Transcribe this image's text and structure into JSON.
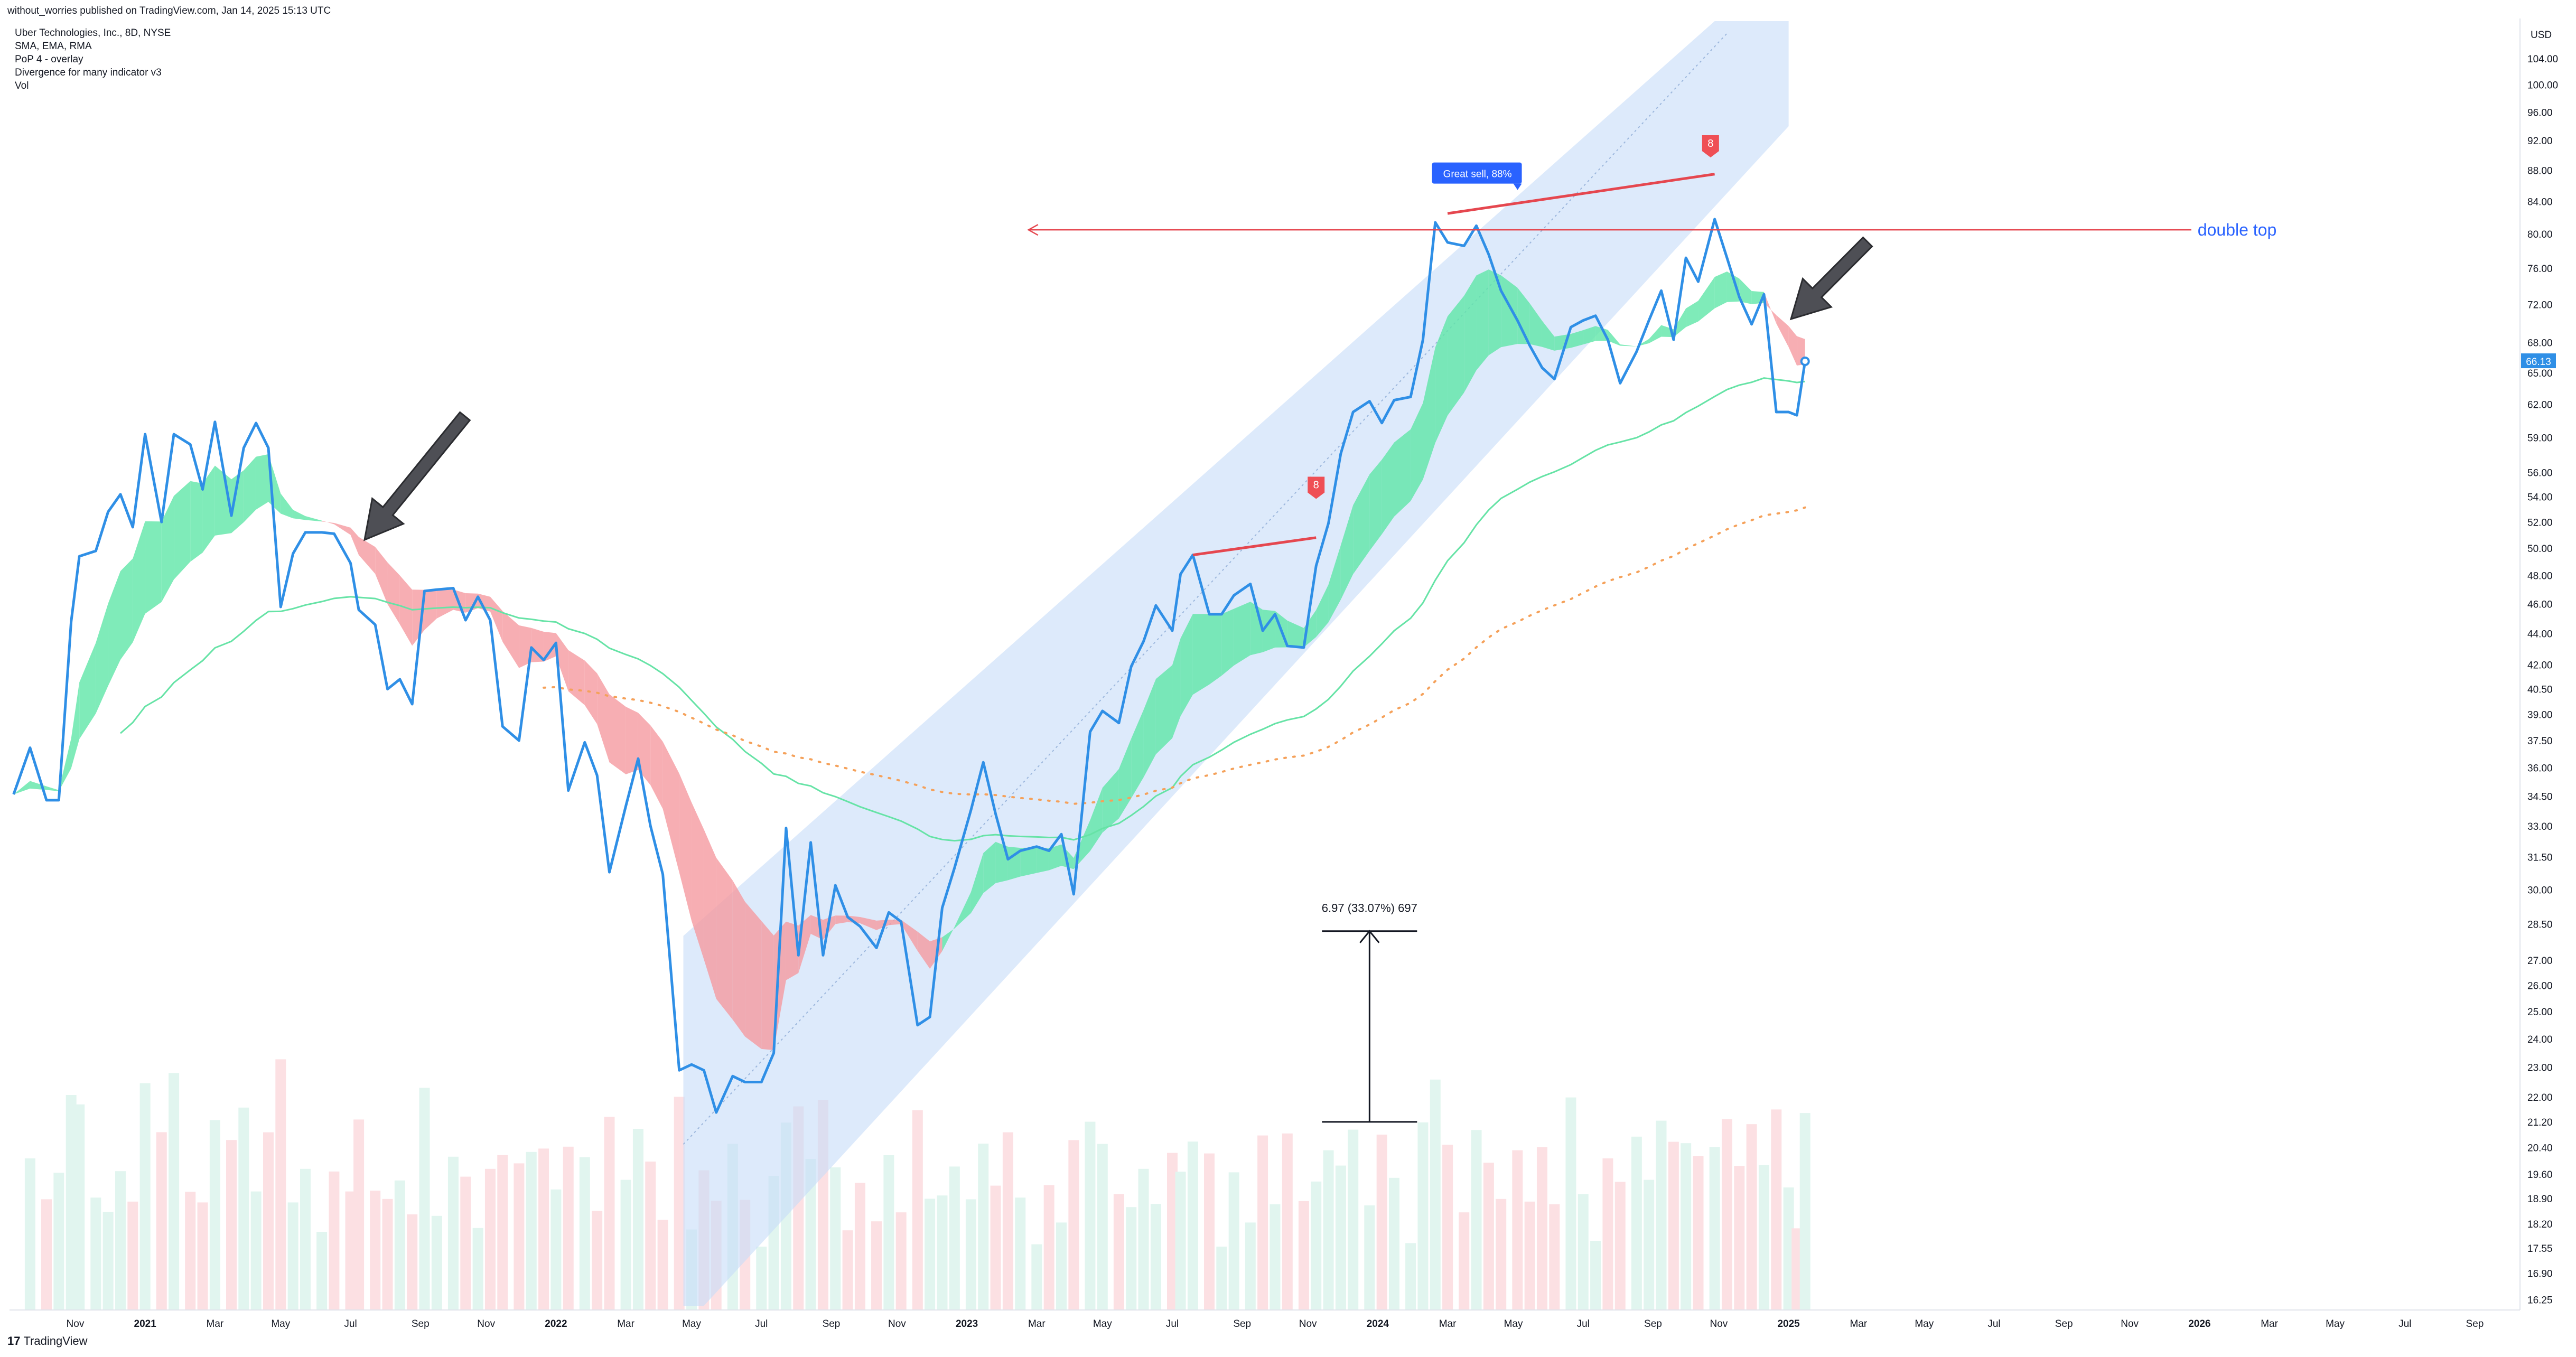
{
  "header": {
    "published": "without_worries published on TradingView.com, Jan 14, 2025 15:13 UTC"
  },
  "legend_lines": [
    "Uber Technologies, Inc., 8D, NYSE",
    "SMA, EMA, RMA",
    "PoP 4 - overlay",
    "Divergence for many indicator v3",
    "Vol"
  ],
  "footer": {
    "logo_mark": "17",
    "brand": "TradingView"
  },
  "colors": {
    "price": "#2f8fe6",
    "green_band": "#5fe6a8",
    "red_band": "#f59aa0",
    "sma": "#66e3a6",
    "dotted": "#f5a15a",
    "channel": "#c6dcf8",
    "red_line": "#e5474f",
    "label_blue": "#2962ff",
    "arrow": "#4e4f55",
    "vol_red": "#fce0e3",
    "vol_green": "#e1f5ef"
  },
  "chart_data": {
    "type": "line",
    "title": "Uber Technologies, Inc., 8D, NYSE",
    "currency": "USD",
    "scale": "log",
    "ylim": [
      16,
      110
    ],
    "y_ticks": [
      104,
      100,
      96,
      92,
      88,
      84,
      80,
      76,
      72,
      68,
      65,
      62,
      59,
      56,
      54,
      52,
      50,
      48,
      46,
      44,
      42,
      40.5,
      39,
      37.5,
      36,
      34.5,
      33,
      31.5,
      30,
      28.5,
      27,
      26,
      25,
      24,
      23,
      22,
      21.2,
      20.4,
      19.6,
      18.9,
      18.2,
      17.55,
      16.9,
      16.25
    ],
    "y_tick_labels": [
      "104.00",
      "100.00",
      "96.00",
      "92.00",
      "88.00",
      "84.00",
      "80.00",
      "76.00",
      "72.00",
      "68.00",
      "65.00",
      "62.00",
      "59.00",
      "56.00",
      "54.00",
      "52.00",
      "50.00",
      "48.00",
      "46.00",
      "44.00",
      "42.00",
      "40.50",
      "39.00",
      "37.50",
      "36.00",
      "34.50",
      "33.00",
      "31.50",
      "30.00",
      "28.50",
      "27.00",
      "26.00",
      "25.00",
      "24.00",
      "23.00",
      "22.00",
      "21.20",
      "20.40",
      "19.60",
      "18.90",
      "18.20",
      "17.55",
      "16.90",
      "16.25"
    ],
    "x_ticks": [
      {
        "label": "Nov",
        "t": 2020.83
      },
      {
        "label": "2021",
        "t": 2021.0
      },
      {
        "label": "Mar",
        "t": 2021.17
      },
      {
        "label": "May",
        "t": 2021.33
      },
      {
        "label": "Jul",
        "t": 2021.5
      },
      {
        "label": "Sep",
        "t": 2021.67
      },
      {
        "label": "Nov",
        "t": 2021.83
      },
      {
        "label": "2022",
        "t": 2022.0
      },
      {
        "label": "Mar",
        "t": 2022.17
      },
      {
        "label": "May",
        "t": 2022.33
      },
      {
        "label": "Jul",
        "t": 2022.5
      },
      {
        "label": "Sep",
        "t": 2022.67
      },
      {
        "label": "Nov",
        "t": 2022.83
      },
      {
        "label": "2023",
        "t": 2023.0
      },
      {
        "label": "Mar",
        "t": 2023.17
      },
      {
        "label": "May",
        "t": 2023.33
      },
      {
        "label": "Jul",
        "t": 2023.5
      },
      {
        "label": "Sep",
        "t": 2023.67
      },
      {
        "label": "Nov",
        "t": 2023.83
      },
      {
        "label": "2024",
        "t": 2024.0
      },
      {
        "label": "Mar",
        "t": 2024.17
      },
      {
        "label": "May",
        "t": 2024.33
      },
      {
        "label": "Jul",
        "t": 2024.5
      },
      {
        "label": "Sep",
        "t": 2024.67
      },
      {
        "label": "Nov",
        "t": 2024.83
      },
      {
        "label": "2025",
        "t": 2025.0
      },
      {
        "label": "Mar",
        "t": 2025.17
      },
      {
        "label": "May",
        "t": 2025.33
      },
      {
        "label": "Jul",
        "t": 2025.5
      },
      {
        "label": "Sep",
        "t": 2025.67
      },
      {
        "label": "Nov",
        "t": 2025.83
      },
      {
        "label": "2026",
        "t": 2026.0
      },
      {
        "label": "Mar",
        "t": 2026.17
      },
      {
        "label": "May",
        "t": 2026.33
      },
      {
        "label": "Jul",
        "t": 2026.5
      },
      {
        "label": "Sep",
        "t": 2026.67
      }
    ],
    "x_range": [
      2020.67,
      2026.78
    ],
    "price": [
      [
        2020.68,
        34.6
      ],
      [
        2020.72,
        37.1
      ],
      [
        2020.76,
        34.3
      ],
      [
        2020.79,
        34.3
      ],
      [
        2020.82,
        44.8
      ],
      [
        2020.84,
        49.4
      ],
      [
        2020.88,
        49.8
      ],
      [
        2020.91,
        52.8
      ],
      [
        2020.94,
        54.2
      ],
      [
        2020.97,
        51.6
      ],
      [
        2021.0,
        59.3
      ],
      [
        2021.04,
        52.0
      ],
      [
        2021.07,
        59.3
      ],
      [
        2021.11,
        58.4
      ],
      [
        2021.14,
        54.6
      ],
      [
        2021.17,
        60.4
      ],
      [
        2021.21,
        52.5
      ],
      [
        2021.24,
        58.1
      ],
      [
        2021.27,
        60.3
      ],
      [
        2021.3,
        58.1
      ],
      [
        2021.33,
        45.8
      ],
      [
        2021.36,
        49.6
      ],
      [
        2021.39,
        51.2
      ],
      [
        2021.43,
        51.2
      ],
      [
        2021.46,
        51.1
      ],
      [
        2021.5,
        48.9
      ],
      [
        2021.52,
        45.6
      ],
      [
        2021.56,
        44.6
      ],
      [
        2021.59,
        40.5
      ],
      [
        2021.62,
        41.1
      ],
      [
        2021.65,
        39.6
      ],
      [
        2021.68,
        46.9
      ],
      [
        2021.71,
        47.0
      ],
      [
        2021.75,
        47.1
      ],
      [
        2021.78,
        44.9
      ],
      [
        2021.81,
        46.5
      ],
      [
        2021.84,
        44.9
      ],
      [
        2021.87,
        38.3
      ],
      [
        2021.91,
        37.5
      ],
      [
        2021.94,
        43.1
      ],
      [
        2021.97,
        42.3
      ],
      [
        2022.0,
        43.4
      ],
      [
        2022.03,
        34.8
      ],
      [
        2022.07,
        37.4
      ],
      [
        2022.1,
        35.6
      ],
      [
        2022.13,
        30.8
      ],
      [
        2022.17,
        34.0
      ],
      [
        2022.2,
        36.5
      ],
      [
        2022.23,
        33.0
      ],
      [
        2022.26,
        30.7
      ],
      [
        2022.3,
        22.9
      ],
      [
        2022.33,
        23.1
      ],
      [
        2022.36,
        22.9
      ],
      [
        2022.39,
        21.5
      ],
      [
        2022.43,
        22.7
      ],
      [
        2022.46,
        22.5
      ],
      [
        2022.5,
        22.5
      ],
      [
        2022.53,
        23.5
      ],
      [
        2022.56,
        32.9
      ],
      [
        2022.59,
        27.2
      ],
      [
        2022.62,
        32.2
      ],
      [
        2022.65,
        27.2
      ],
      [
        2022.68,
        30.2
      ],
      [
        2022.71,
        28.8
      ],
      [
        2022.74,
        28.4
      ],
      [
        2022.78,
        27.5
      ],
      [
        2022.81,
        29.0
      ],
      [
        2022.84,
        28.6
      ],
      [
        2022.88,
        24.5
      ],
      [
        2022.91,
        24.8
      ],
      [
        2022.94,
        29.2
      ],
      [
        2022.97,
        31.0
      ],
      [
        2023.01,
        33.8
      ],
      [
        2023.04,
        36.3
      ],
      [
        2023.07,
        33.6
      ],
      [
        2023.1,
        31.4
      ],
      [
        2023.13,
        31.8
      ],
      [
        2023.17,
        32.0
      ],
      [
        2023.2,
        31.8
      ],
      [
        2023.23,
        32.6
      ],
      [
        2023.26,
        29.8
      ],
      [
        2023.3,
        38.0
      ],
      [
        2023.33,
        39.2
      ],
      [
        2023.37,
        38.5
      ],
      [
        2023.4,
        41.9
      ],
      [
        2023.43,
        43.5
      ],
      [
        2023.46,
        45.9
      ],
      [
        2023.5,
        44.2
      ],
      [
        2023.52,
        48.1
      ],
      [
        2023.55,
        49.5
      ],
      [
        2023.59,
        45.3
      ],
      [
        2023.62,
        45.3
      ],
      [
        2023.65,
        46.6
      ],
      [
        2023.69,
        47.4
      ],
      [
        2023.72,
        44.2
      ],
      [
        2023.75,
        45.3
      ],
      [
        2023.78,
        43.2
      ],
      [
        2023.82,
        43.1
      ],
      [
        2023.85,
        48.7
      ],
      [
        2023.88,
        51.9
      ],
      [
        2023.91,
        57.6
      ],
      [
        2023.94,
        61.3
      ],
      [
        2023.98,
        62.3
      ],
      [
        2024.01,
        60.3
      ],
      [
        2024.04,
        62.4
      ],
      [
        2024.08,
        62.7
      ],
      [
        2024.11,
        68.3
      ],
      [
        2024.14,
        81.4
      ],
      [
        2024.17,
        79.0
      ],
      [
        2024.21,
        78.6
      ],
      [
        2024.24,
        81.0
      ],
      [
        2024.27,
        77.6
      ],
      [
        2024.3,
        73.5
      ],
      [
        2024.34,
        70.3
      ],
      [
        2024.37,
        67.7
      ],
      [
        2024.4,
        65.5
      ],
      [
        2024.43,
        64.4
      ],
      [
        2024.47,
        69.6
      ],
      [
        2024.5,
        70.3
      ],
      [
        2024.53,
        70.8
      ],
      [
        2024.56,
        68.3
      ],
      [
        2024.59,
        64.0
      ],
      [
        2024.63,
        67.1
      ],
      [
        2024.66,
        70.3
      ],
      [
        2024.69,
        73.5
      ],
      [
        2024.72,
        68.3
      ],
      [
        2024.75,
        77.2
      ],
      [
        2024.78,
        74.5
      ],
      [
        2024.82,
        81.8
      ],
      [
        2024.85,
        77.2
      ],
      [
        2024.88,
        72.8
      ],
      [
        2024.91,
        69.9
      ],
      [
        2024.94,
        73.1
      ],
      [
        2024.97,
        61.3
      ],
      [
        2025.0,
        61.3
      ],
      [
        2025.02,
        61.0
      ],
      [
        2025.04,
        66.13
      ]
    ],
    "last_price_label": "66.13",
    "annotations": {
      "great_sell": "Great sell, 88%",
      "double_top": "double top",
      "signal_markers": [
        "8",
        "8"
      ],
      "measure": "6.97 (33.07%) 697"
    },
    "axis_unit_label": "USD"
  }
}
